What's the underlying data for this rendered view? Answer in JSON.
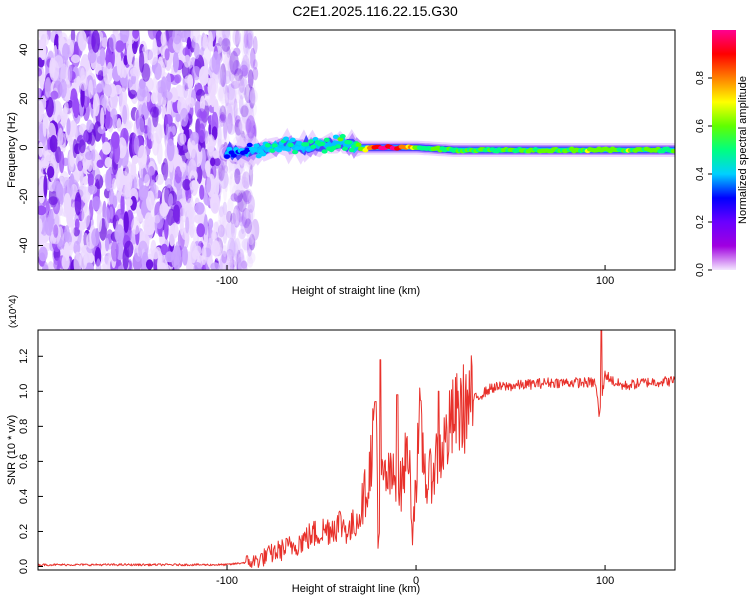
{
  "title": "C2E1.2025.116.22.15.G30",
  "colorbar": {
    "label": "Normalized spectral amplitude",
    "ticks": [
      0.0,
      0.2,
      0.4,
      0.6,
      0.8
    ],
    "tick_labels": [
      "0.0",
      "0.2",
      "0.4",
      "0.6",
      "0.8"
    ],
    "range": [
      0,
      1
    ],
    "colors": [
      "#f4e6ff",
      "#a000e0",
      "#6a00ff",
      "#0000ff",
      "#00d0ff",
      "#00ff80",
      "#60ff00",
      "#ffff00",
      "#ff8000",
      "#ff0000",
      "#ff0090"
    ]
  },
  "chart_data": [
    {
      "type": "heatmap",
      "title": "C2E1.2025.116.22.15.G30",
      "xlabel": "Height of straight line (km)",
      "ylabel": "Frequency (Hz)",
      "xlim": [
        -200,
        137
      ],
      "ylim": [
        -50,
        48
      ],
      "xticks": [
        -100,
        100
      ],
      "xtick_labels": [
        "-100",
        "100"
      ],
      "yticks": [
        -40,
        -20,
        0,
        20,
        40
      ],
      "ytick_labels": [
        "-40",
        "-20",
        "0",
        "20",
        "40"
      ],
      "signal_track": {
        "x": [
          -100,
          -90,
          -80,
          -70,
          -60,
          -50,
          -40,
          -30,
          -20,
          -10,
          0,
          20,
          60,
          100,
          137
        ],
        "freq": [
          -2,
          -2,
          -1,
          1,
          0,
          1,
          2,
          0,
          0,
          0,
          0,
          -1,
          -1,
          -1,
          -1
        ],
        "amplitude": [
          0.3,
          0.35,
          0.4,
          0.45,
          0.45,
          0.5,
          0.5,
          0.6,
          0.95,
          0.95,
          0.6,
          0.55,
          0.55,
          0.6,
          0.55
        ]
      },
      "noise_region": {
        "x_from": -200,
        "x_to": -95,
        "amplitude": "0.0-0.2"
      }
    },
    {
      "type": "line",
      "xlabel": "Height of straight line (km)",
      "ylabel": "SNR (10 * v/v)",
      "y_multiplier": "(x10^4)",
      "xlim": [
        -200,
        137
      ],
      "ylim": [
        -0.02,
        1.35
      ],
      "xticks": [
        -100,
        0,
        100
      ],
      "xtick_labels": [
        "-100",
        "0",
        "100"
      ],
      "yticks": [
        0.0,
        0.2,
        0.4,
        0.6,
        0.8,
        1.0,
        1.2
      ],
      "ytick_labels": [
        "0.0",
        "0.2",
        "0.4",
        "0.6",
        "0.8",
        "1.0",
        "1.2"
      ],
      "series": [
        {
          "name": "SNR",
          "color": "#e8312b",
          "x": [
            -200,
            -150,
            -100,
            -85,
            -75,
            -65,
            -55,
            -45,
            -40,
            -35,
            -30,
            -25,
            -21,
            -20,
            -18,
            -12,
            -8,
            -4,
            -2,
            2,
            6,
            10,
            15,
            20,
            30,
            40,
            50,
            60,
            70,
            80,
            90,
            95,
            97,
            100,
            105,
            110,
            120,
            137
          ],
          "y": [
            0.01,
            0.01,
            0.01,
            0.03,
            0.08,
            0.12,
            0.18,
            0.22,
            0.25,
            0.2,
            0.3,
            0.5,
            0.95,
            0.1,
            0.5,
            0.5,
            0.45,
            0.7,
            0.2,
            0.8,
            0.45,
            0.6,
            0.7,
            0.85,
            0.95,
            1.02,
            1.03,
            1.04,
            1.05,
            1.05,
            1.05,
            1.05,
            0.85,
            1.1,
            1.05,
            1.03,
            1.05,
            1.06
          ]
        }
      ],
      "peaks": [
        {
          "x": -19,
          "y": 1.18
        },
        {
          "x": -10,
          "y": 0.98
        },
        {
          "x": 12,
          "y": 1.0
        },
        {
          "x": 98,
          "y": 1.35
        }
      ]
    }
  ]
}
